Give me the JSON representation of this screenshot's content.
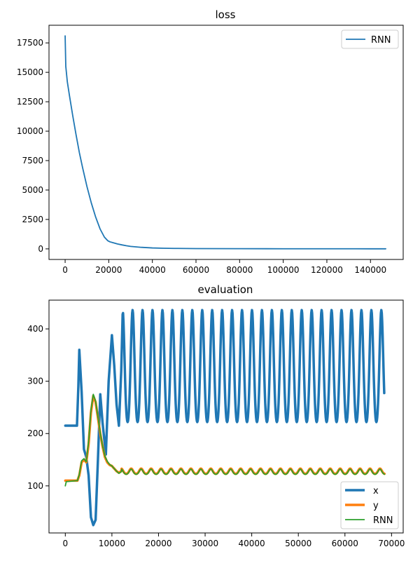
{
  "chart_data": [
    {
      "type": "line",
      "title": "loss",
      "xlabel": "",
      "ylabel": "",
      "xlim": [
        -7400,
        155000
      ],
      "ylim": [
        -900,
        19000
      ],
      "xticks": [
        0,
        20000,
        40000,
        60000,
        80000,
        100000,
        120000,
        140000
      ],
      "yticks": [
        0,
        2500,
        5000,
        7500,
        10000,
        12500,
        15000,
        17500
      ],
      "grid": false,
      "legend_position": "top-right",
      "series": [
        {
          "name": "RNN",
          "color": "#1f77b4",
          "x": [
            0,
            300,
            1000,
            2000,
            3500,
            5000,
            6500,
            8000,
            10000,
            12000,
            14000,
            16000,
            18000,
            19500,
            20500,
            22000,
            24000,
            26000,
            28000,
            30000,
            35000,
            40000,
            45000,
            50000,
            60000,
            80000,
            100000,
            120000,
            140000,
            147000
          ],
          "y": [
            18100,
            15500,
            14200,
            13000,
            11300,
            9700,
            8200,
            6900,
            5300,
            3900,
            2700,
            1700,
            1000,
            700,
            600,
            520,
            420,
            340,
            270,
            210,
            130,
            80,
            55,
            40,
            25,
            15,
            10,
            8,
            6,
            5
          ]
        }
      ]
    },
    {
      "type": "line",
      "title": "evaluation",
      "xlabel": "",
      "ylabel": "",
      "xlim": [
        -3500,
        72500
      ],
      "ylim": [
        10,
        455
      ],
      "xticks": [
        0,
        10000,
        20000,
        30000,
        40000,
        50000,
        60000,
        70000
      ],
      "yticks": [
        100,
        200,
        300,
        400
      ],
      "grid": false,
      "legend_position": "bottom-right",
      "series": [
        {
          "name": "x",
          "color": "#1f77b4",
          "x": [
            0,
            2500,
            2800,
            3000,
            3500,
            4000,
            4500,
            5000,
            5500,
            6000,
            6500,
            7000,
            7500,
            8000,
            8700,
            9300,
            10000,
            10500,
            11000,
            11500,
            12000,
            12300
          ],
          "y": [
            215,
            215,
            290,
            360,
            280,
            170,
            155,
            120,
            40,
            25,
            35,
            150,
            275,
            220,
            160,
            300,
            388,
            330,
            255,
            215,
            320,
            428
          ],
          "oscillation": {
            "start": 12300,
            "end": 68500,
            "period": 2135,
            "min": 222,
            "max": 436
          }
        },
        {
          "name": "y",
          "color": "#ff7f0e",
          "x": [
            0,
            2600,
            3000,
            3500,
            4000,
            4500,
            5000,
            5500,
            6000,
            6500,
            7000,
            7500,
            8000,
            8500,
            9000,
            9500,
            10000,
            10500,
            11000,
            11500,
            12000
          ],
          "y": [
            110,
            110,
            120,
            145,
            150,
            145,
            180,
            240,
            272,
            260,
            230,
            200,
            175,
            155,
            145,
            140,
            138,
            133,
            128,
            125,
            128
          ],
          "oscillation": {
            "start": 12000,
            "end": 68500,
            "period": 2135,
            "min": 123,
            "max": 133
          }
        },
        {
          "name": "RNN",
          "color": "#2ca02c",
          "x": [
            0,
            200,
            2600,
            3000,
            3500,
            4000,
            4500,
            5000,
            5500,
            6000,
            6500,
            7000,
            7500,
            8000,
            8500,
            9000,
            9500,
            10000,
            10500,
            11000,
            11500,
            12000
          ],
          "y": [
            100,
            108,
            110,
            122,
            148,
            152,
            146,
            185,
            245,
            275,
            262,
            232,
            202,
            176,
            157,
            147,
            141,
            138,
            133,
            128,
            124,
            127
          ],
          "oscillation": {
            "start": 12000,
            "end": 68500,
            "period": 2135,
            "min": 122,
            "max": 132
          }
        }
      ]
    }
  ]
}
